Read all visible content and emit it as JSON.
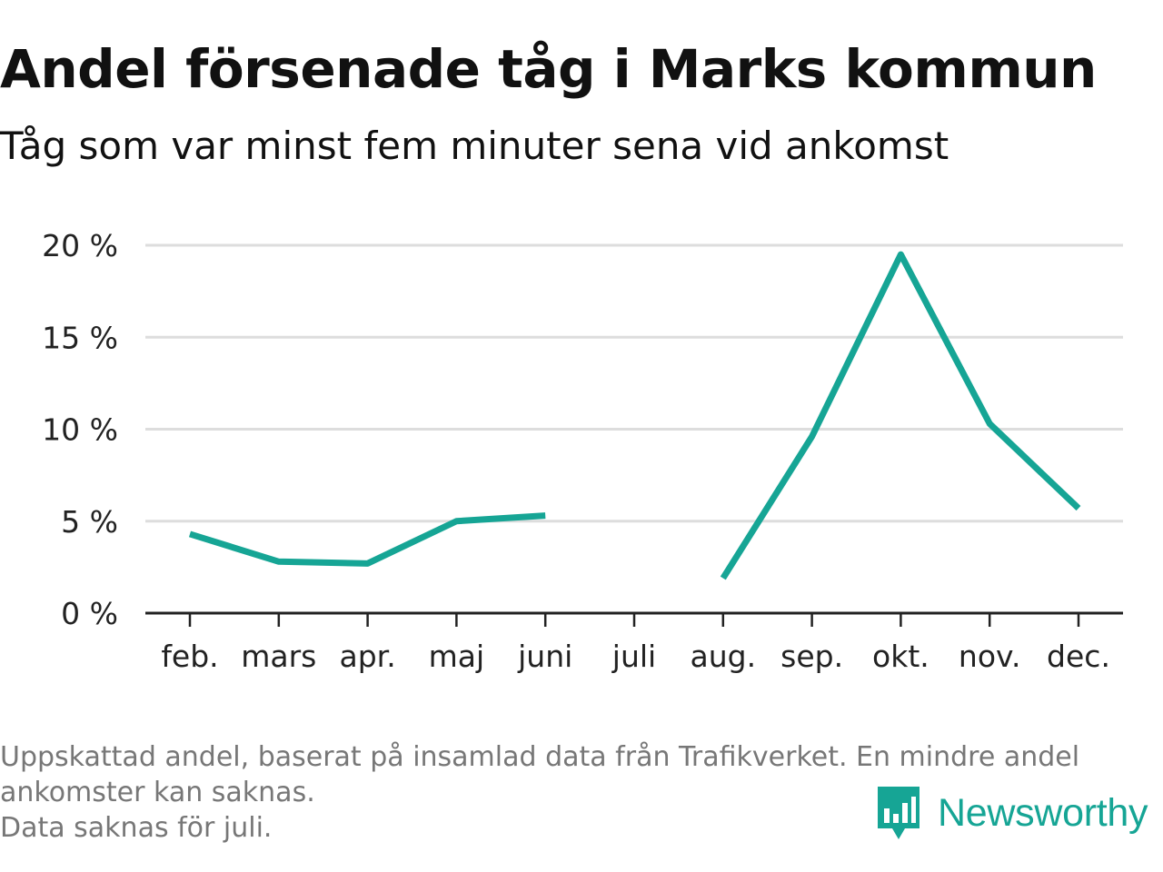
{
  "title": "Andel försenade tåg i Marks kommun",
  "subtitle": "Tåg som var minst fem minuter sena vid ankomst",
  "footnote": [
    "Uppskattad andel, baserat på insamlad data från Trafikverket. En mindre andel",
    "ankomster kan saknas.",
    "Data saknas för juli."
  ],
  "logo": {
    "text": "Newsworthy",
    "icon": "newsworthy-logo-icon",
    "color": "#16a595"
  },
  "chart_data": {
    "type": "line",
    "categories": [
      "feb.",
      "mars",
      "apr.",
      "maj",
      "juni",
      "juli",
      "aug.",
      "sep.",
      "okt.",
      "nov.",
      "dec."
    ],
    "series": [
      {
        "values": [
          4.3,
          2.8,
          2.7,
          5.0,
          5.3,
          null,
          1.9,
          9.6,
          19.5,
          10.3,
          5.7
        ],
        "color": "#16a595"
      }
    ],
    "yticks": [
      0,
      5,
      10,
      15,
      20
    ],
    "ytick_labels": [
      "0 %",
      "5 %",
      "10 %",
      "15 %",
      "20 %"
    ],
    "ylim": [
      0,
      20
    ],
    "xlabel": "",
    "ylabel": "",
    "grid": true,
    "grid_color": "#dddddd",
    "axis_color": "#222222"
  }
}
